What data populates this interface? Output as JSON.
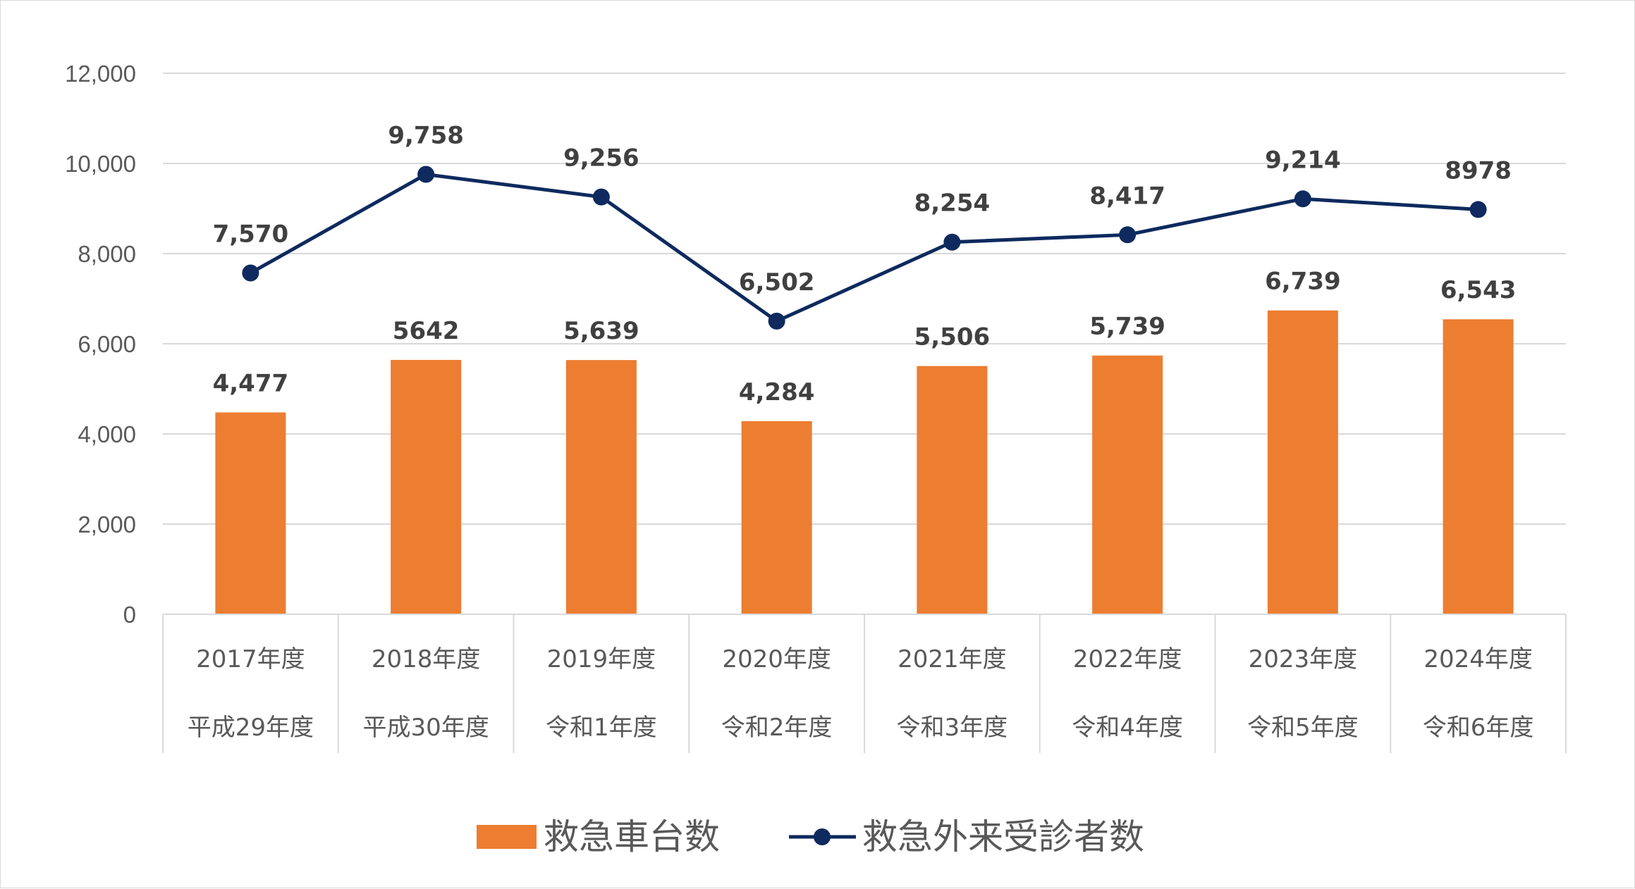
{
  "chart_data": {
    "type": "bar+line",
    "title": "",
    "ylim": [
      0,
      12000
    ],
    "yticks": [
      0,
      2000,
      4000,
      6000,
      8000,
      10000,
      12000
    ],
    "ytick_labels": [
      "0",
      "2,000",
      "4,000",
      "6,000",
      "8,000",
      "10,000",
      "12,000"
    ],
    "grid": true,
    "legend_position": "bottom-center",
    "categories": [
      {
        "year": "2017年度",
        "era": "平成29年度"
      },
      {
        "year": "2018年度",
        "era": "平成30年度"
      },
      {
        "year": "2019年度",
        "era": "令和1年度"
      },
      {
        "year": "2020年度",
        "era": "令和2年度"
      },
      {
        "year": "2021年度",
        "era": "令和3年度"
      },
      {
        "year": "2022年度",
        "era": "令和4年度"
      },
      {
        "year": "2023年度",
        "era": "令和5年度"
      },
      {
        "year": "2024年度",
        "era": "令和6年度"
      }
    ],
    "series": [
      {
        "name": "救急車台数",
        "type": "bar",
        "color": "#ED7D31",
        "values": [
          4477,
          5642,
          5639,
          4284,
          5506,
          5739,
          6739,
          6543
        ],
        "labels": [
          "4,477",
          "5642",
          "5,639",
          "4,284",
          "5,506",
          "5,739",
          "6,739",
          "6,543"
        ]
      },
      {
        "name": "救急外来受診者数",
        "type": "line",
        "color": "#0E2A5E",
        "values": [
          7570,
          9758,
          9256,
          6502,
          8254,
          8417,
          9214,
          8978
        ],
        "labels": [
          "7,570",
          "9,758",
          "9,256",
          "6,502",
          "8,254",
          "8,417",
          "9,214",
          "8978"
        ]
      }
    ]
  }
}
